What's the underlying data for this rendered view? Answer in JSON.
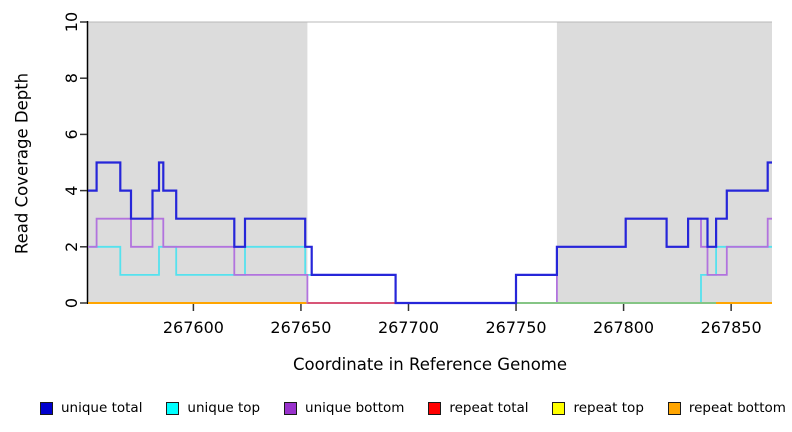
{
  "chart_data": {
    "type": "line",
    "title": "",
    "xlabel": "Coordinate in Reference Genome",
    "ylabel": "Read Coverage Depth",
    "x_range": [
      267551,
      267869
    ],
    "y_range": [
      0,
      10
    ],
    "x_ticks": [
      267600,
      267650,
      267700,
      267750,
      267800,
      267850
    ],
    "y_ticks": [
      0,
      2,
      4,
      6,
      8,
      10
    ],
    "grid": "off",
    "legend_position": "bottom",
    "shade_color": "#dcdcdc",
    "shaded_regions": [
      {
        "label": "repeat-region-left",
        "from": 267551,
        "to": 267653
      },
      {
        "label": "repeat-region-right",
        "from": 267769,
        "to": 267869
      }
    ],
    "series": [
      {
        "name": "unique total",
        "color": "#2626d9",
        "width": 2.2,
        "steps": [
          [
            267551,
            4
          ],
          [
            267555,
            5
          ],
          [
            267566,
            4
          ],
          [
            267571,
            3
          ],
          [
            267581,
            4
          ],
          [
            267584,
            5
          ],
          [
            267586,
            4
          ],
          [
            267592,
            3
          ],
          [
            267619,
            2
          ],
          [
            267624,
            3
          ],
          [
            267652,
            2
          ],
          [
            267655,
            1
          ],
          [
            267694,
            0
          ],
          [
            267750,
            1
          ],
          [
            267769,
            2
          ],
          [
            267801,
            3
          ],
          [
            267820,
            2
          ],
          [
            267830,
            3
          ],
          [
            267839,
            2
          ],
          [
            267843,
            3
          ],
          [
            267848,
            4
          ],
          [
            267867,
            5
          ]
        ]
      },
      {
        "name": "unique top",
        "color": "#55e2ee",
        "width": 1.8,
        "steps": [
          [
            267551,
            2
          ],
          [
            267566,
            1
          ],
          [
            267584,
            2
          ],
          [
            267592,
            1
          ],
          [
            267624,
            2
          ],
          [
            267652,
            1
          ],
          [
            267694,
            0
          ],
          [
            267836,
            1
          ],
          [
            267843,
            2
          ]
        ]
      },
      {
        "name": "unique bottom",
        "color": "#b273de",
        "width": 1.8,
        "steps": [
          [
            267551,
            2
          ],
          [
            267555,
            3
          ],
          [
            267571,
            2
          ],
          [
            267581,
            3
          ],
          [
            267586,
            2
          ],
          [
            267619,
            1
          ],
          [
            267653,
            0
          ],
          [
            267769,
            2
          ],
          [
            267801,
            3
          ],
          [
            267820,
            2
          ],
          [
            267830,
            3
          ],
          [
            267836,
            2
          ],
          [
            267839,
            1
          ],
          [
            267848,
            2
          ],
          [
            267867,
            3
          ]
        ]
      },
      {
        "name": "repeat total",
        "color": "#e03030",
        "width": 1.8,
        "steps": [
          [
            267551,
            0
          ]
        ]
      },
      {
        "name": "repeat top",
        "color": "#f5f500",
        "width": 1.8,
        "steps": [
          [
            267551,
            0
          ]
        ]
      },
      {
        "name": "repeat bottom",
        "color": "#ffa500",
        "width": 2,
        "steps": [
          [
            267551,
            0
          ]
        ]
      }
    ],
    "baseline_overdraw": [
      {
        "from": 267653,
        "to": 267694,
        "color": "#d85577",
        "note": "repeat-total over unique-bottom at depth 0"
      },
      {
        "from": 267750,
        "to": 267843,
        "color": "#85c585",
        "note": "repeat-top over unique-top at depth 0"
      }
    ]
  },
  "legend": {
    "items": [
      {
        "label": "unique total",
        "color": "#0000cd"
      },
      {
        "label": "unique top",
        "color": "#00ffff"
      },
      {
        "label": "unique bottom",
        "color": "#9932cc"
      },
      {
        "label": "repeat total",
        "color": "#ff0000"
      },
      {
        "label": "repeat top",
        "color": "#ffff00"
      },
      {
        "label": "repeat bottom",
        "color": "#ffa500"
      }
    ]
  }
}
